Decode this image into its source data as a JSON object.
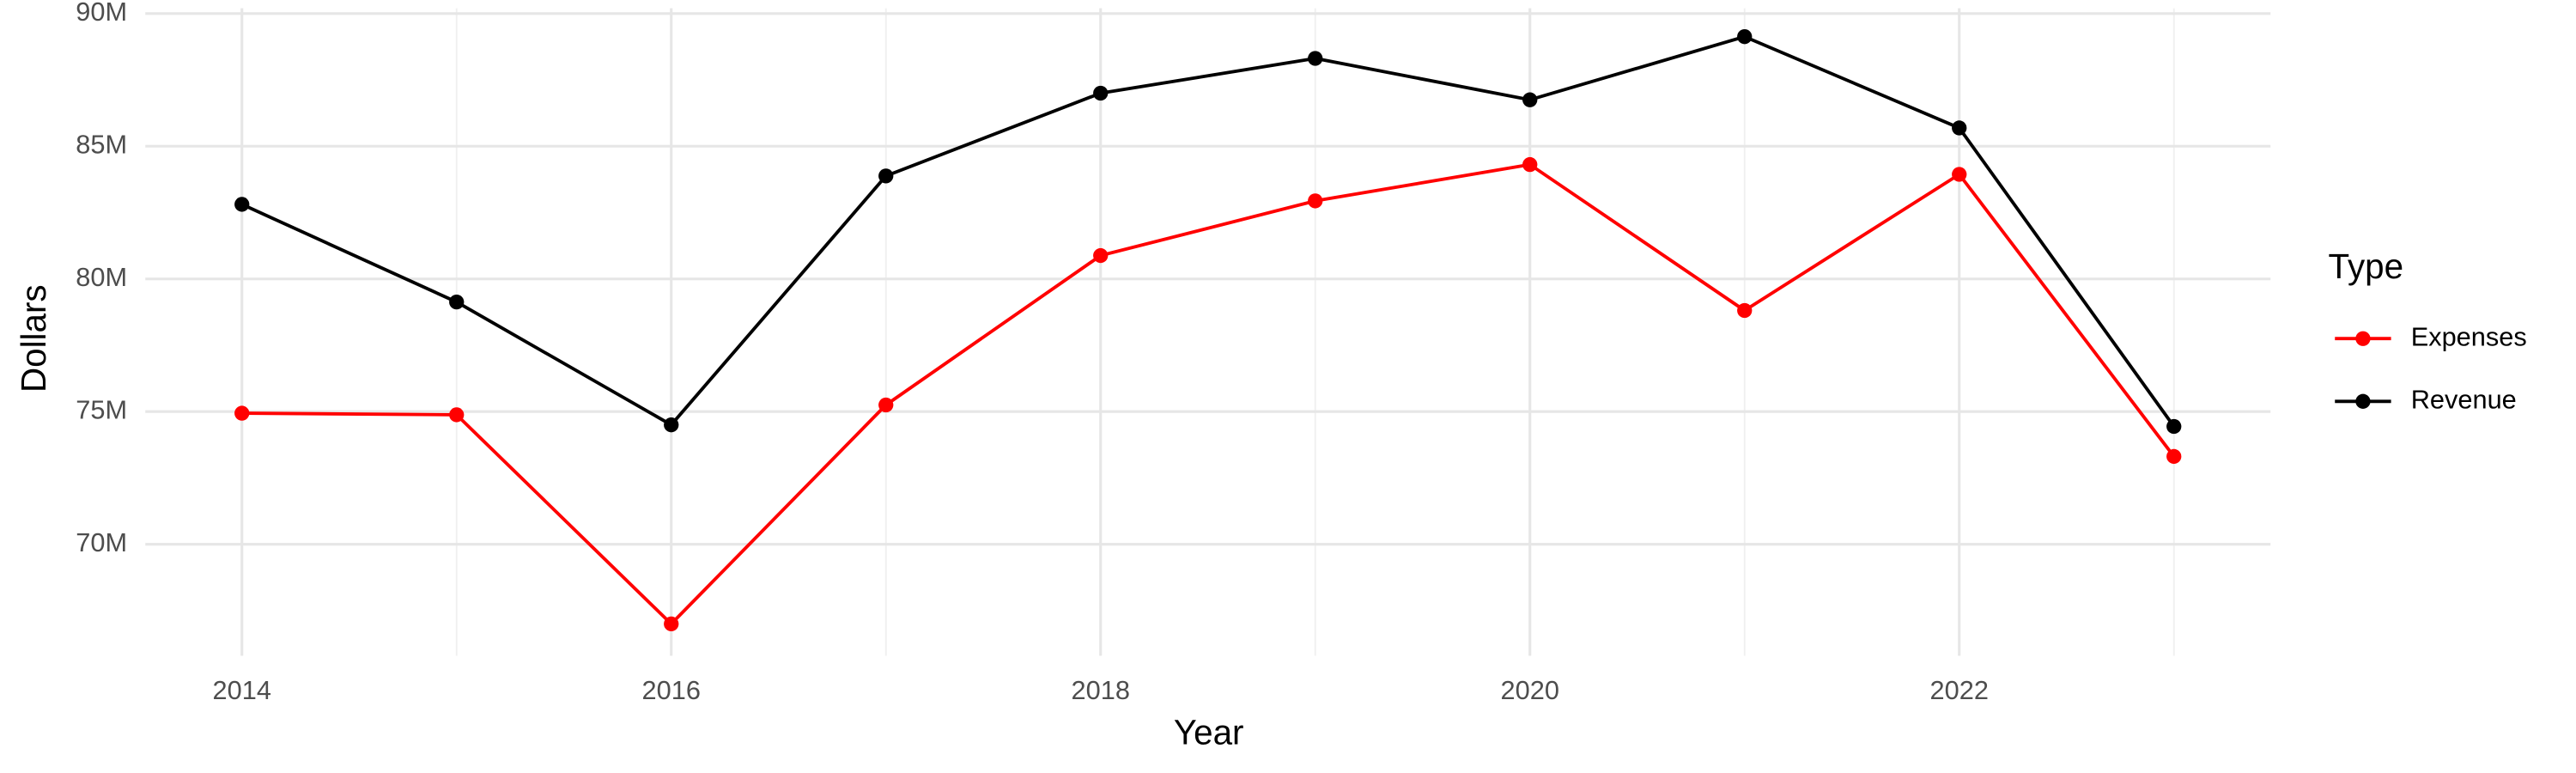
{
  "chart_data": {
    "type": "line",
    "x_label": "Year",
    "y_label": "Dollars",
    "x": [
      2014,
      2015,
      2016,
      2017,
      2018,
      2019,
      2020,
      2021,
      2022,
      2023
    ],
    "series": [
      {
        "name": "Expenses",
        "color": "#ff0000",
        "values": [
          74940000,
          74880000,
          67000000,
          75250000,
          80880000,
          82940000,
          84310000,
          78810000,
          83940000,
          73310000
        ]
      },
      {
        "name": "Revenue",
        "color": "#000000",
        "values": [
          82810000,
          79130000,
          74500000,
          83880000,
          87000000,
          88310000,
          86750000,
          89130000,
          85690000,
          74440000
        ]
      }
    ],
    "xlim": [
      2013.55,
      2023.45
    ],
    "xticks": [
      2014,
      2016,
      2018,
      2020,
      2022
    ],
    "ylim": [
      65800000,
      90200000
    ],
    "yticks": [
      {
        "value": 70000000,
        "label": "70M"
      },
      {
        "value": 75000000,
        "label": "75M"
      },
      {
        "value": 80000000,
        "label": "80M"
      },
      {
        "value": 85000000,
        "label": "85M"
      },
      {
        "value": 90000000,
        "label": "90M"
      }
    ],
    "grid": true,
    "legend_title": "Type",
    "legend_position": "right"
  }
}
